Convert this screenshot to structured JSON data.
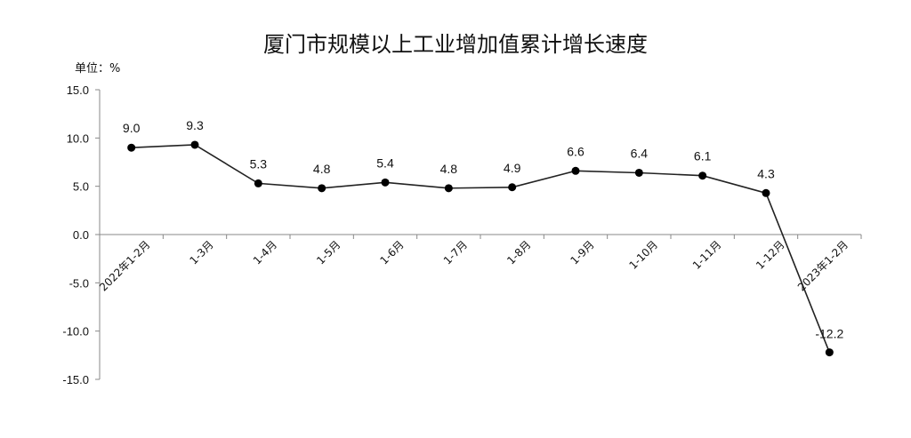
{
  "chart_data": {
    "type": "line",
    "title": "厦门市规模以上工业增加值累计增长速度",
    "unit_label": "单位：%",
    "categories": [
      "2022年1-2月",
      "1-3月",
      "1-4月",
      "1-5月",
      "1-6月",
      "1-7月",
      "1-8月",
      "1-9月",
      "1-10月",
      "1-11月",
      "1-12月",
      "2023年1-2月"
    ],
    "values": [
      9.0,
      9.3,
      5.3,
      4.8,
      5.4,
      4.8,
      4.9,
      6.6,
      6.4,
      6.1,
      4.3,
      -12.2
    ],
    "ylim": [
      -15,
      15
    ],
    "yticks": [
      "15.0",
      "10.0",
      "5.0",
      "0.0",
      "-5.0",
      "-10.0",
      "-15.0"
    ],
    "ytick_values": [
      15,
      10,
      5,
      0,
      -5,
      -10,
      -15
    ],
    "line_color": "#222222",
    "marker_color": "#000000",
    "grid": false,
    "legend": "none"
  }
}
